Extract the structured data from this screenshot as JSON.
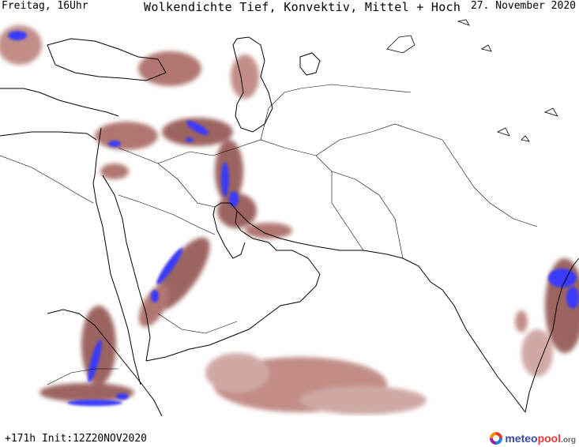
{
  "header": {
    "left": "Freitag, 16Uhr",
    "title": "Wolkendichte  Tief, Konvektiv, Mittel + Hoch",
    "right": "27. November 2020"
  },
  "footer": {
    "run_info": "+171h Init:12Z20NOV2020"
  },
  "logo": {
    "brand_part1": "meteo",
    "brand_part2": "pool",
    "brand_part3": ".org"
  },
  "map": {
    "region": "Middle East / Arabian Peninsula / Northwest India",
    "legend_colors": {
      "low_density": "#e6c6c2",
      "medium_density": "#b87a72",
      "high_density": "#8b4a44",
      "convective": "#3a3afa",
      "coastline": "#000000"
    }
  }
}
